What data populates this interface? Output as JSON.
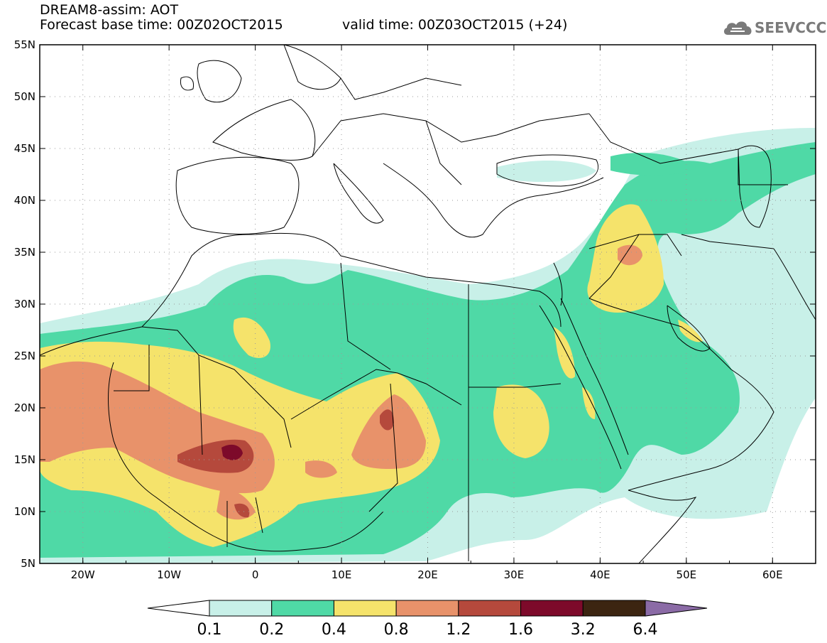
{
  "header": {
    "title": "DREAM8-assim: AOT",
    "base_time": "Forecast base time: 00Z02OCT2015",
    "valid_time": "valid time: 00Z03OCT2015 (+24)",
    "logo_text": "SEEVCCC",
    "logo_icon": "cloud-icon"
  },
  "map": {
    "lon_range": [
      -25,
      65
    ],
    "lat_range": [
      5,
      55
    ],
    "lat_labels": [
      "55N",
      "50N",
      "45N",
      "40N",
      "35N",
      "30N",
      "25N",
      "20N",
      "15N",
      "10N",
      "5N"
    ],
    "lon_labels": [
      "20W",
      "10W",
      "0",
      "10E",
      "20E",
      "30E",
      "40E",
      "50E",
      "60E"
    ],
    "gridlines": "dotted"
  },
  "colorbar": {
    "levels": [
      "0.1",
      "0.2",
      "0.4",
      "0.8",
      "1.2",
      "1.6",
      "3.2",
      "6.4"
    ],
    "colors": [
      "#ffffff",
      "#c8f0e8",
      "#4fd9a6",
      "#f5e36b",
      "#e8926a",
      "#b5493c",
      "#7d0a2a",
      "#3c2511",
      "#8b6ba6"
    ]
  }
}
